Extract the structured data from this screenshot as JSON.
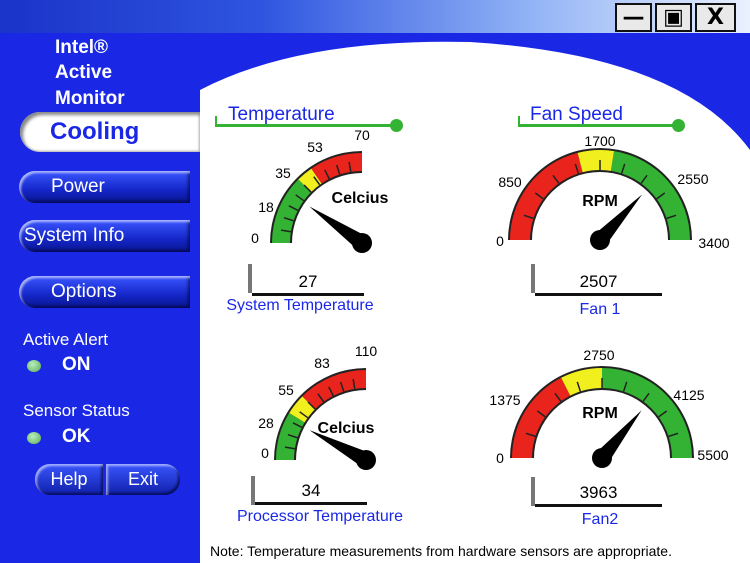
{
  "window": {
    "min_label": "—",
    "max_label": "▣",
    "close_label": "X"
  },
  "brand": {
    "line1": "Intel®",
    "line2": "Active",
    "line3": "Monitor"
  },
  "nav": {
    "cooling": "Cooling",
    "power": "Power",
    "system_info": "System Info",
    "options": "Options"
  },
  "alerts": {
    "active_alert_label": "Active Alert",
    "active_alert_value": "ON",
    "sensor_status_label": "Sensor Status",
    "sensor_status_value": "OK"
  },
  "footer_buttons": {
    "help": "Help",
    "exit": "Exit"
  },
  "sections": {
    "temperature": "Temperature",
    "fan_speed": "Fan Speed"
  },
  "gauges": {
    "system_temp": {
      "unit": "Celcius",
      "ticks": [
        "0",
        "18",
        "35",
        "53",
        "70"
      ],
      "value": "27",
      "reading": 27,
      "max": 70,
      "caption": "System Temperature"
    },
    "fan1": {
      "unit": "RPM",
      "ticks": [
        "0",
        "850",
        "1700",
        "2550",
        "3400"
      ],
      "value": "2507",
      "reading": 2507,
      "max": 3400,
      "caption": "Fan 1"
    },
    "processor_temp": {
      "unit": "Celcius",
      "ticks": [
        "0",
        "28",
        "55",
        "83",
        "110"
      ],
      "value": "34",
      "reading": 34,
      "max": 110,
      "caption": "Processor Temperature"
    },
    "fan2": {
      "unit": "RPM",
      "ticks": [
        "0",
        "1375",
        "2750",
        "4125",
        "5500"
      ],
      "value": "3963",
      "reading": 3963,
      "max": 5500,
      "caption": "Fan2"
    }
  },
  "note": "Note: Temperature measurements from hardware sensors are appropriate.",
  "colors": {
    "sidebar_blue": "#1a28e6",
    "gauge_red": "#e8241c",
    "gauge_yellow": "#f2ef1e",
    "gauge_green": "#33b233"
  }
}
